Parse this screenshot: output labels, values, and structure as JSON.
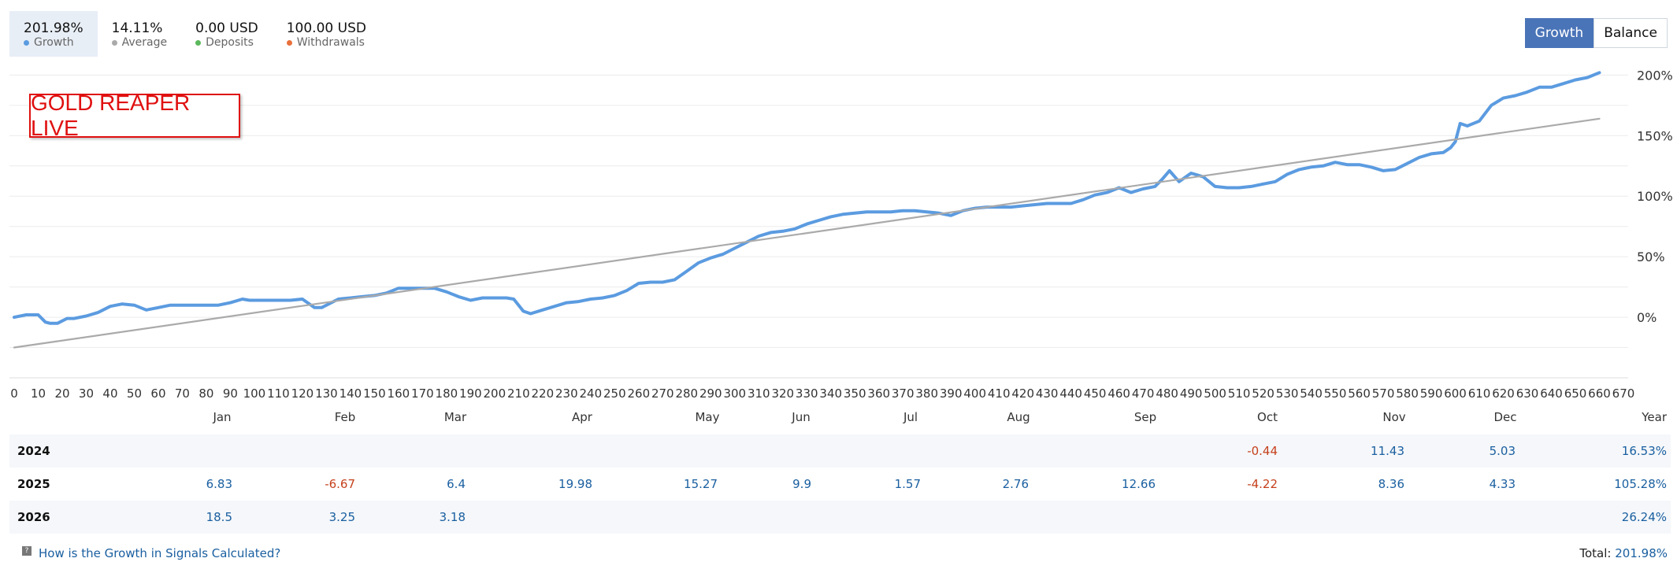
{
  "stats": [
    {
      "value": "201.98%",
      "label": "Growth",
      "dot": "#5b9be0",
      "active": true
    },
    {
      "value": "14.11%",
      "label": "Average",
      "dot": "#aaaaaa",
      "active": false
    },
    {
      "value": "0.00 USD",
      "label": "Deposits",
      "dot": "#5cb85c",
      "active": false
    },
    {
      "value": "100.00 USD",
      "label": "Withdrawals",
      "dot": "#e8703a",
      "active": false
    }
  ],
  "toggle": {
    "growth": "Growth",
    "balance": "Balance"
  },
  "label_box": "GOLD REAPER LIVE",
  "chart_data": {
    "type": "line",
    "xlim": [
      0,
      670
    ],
    "ylim": [
      -50,
      210
    ],
    "x_ticks": [
      0,
      10,
      20,
      30,
      40,
      50,
      60,
      70,
      80,
      90,
      100,
      110,
      120,
      130,
      140,
      150,
      160,
      170,
      180,
      190,
      200,
      210,
      220,
      230,
      240,
      250,
      260,
      270,
      280,
      290,
      300,
      310,
      320,
      330,
      340,
      350,
      360,
      370,
      380,
      390,
      400,
      410,
      420,
      430,
      440,
      450,
      460,
      470,
      480,
      490,
      500,
      510,
      520,
      530,
      540,
      550,
      560,
      570,
      580,
      590,
      600,
      610,
      620,
      630,
      640,
      650,
      660,
      670
    ],
    "y_ticks": [
      0,
      50,
      100,
      150,
      200
    ],
    "y_tick_labels": [
      "0%",
      "50%",
      "100%",
      "150%",
      "200%"
    ],
    "grid": true,
    "series": [
      {
        "color": "#5b9be0",
        "x": [
          0,
          5,
          10,
          13,
          15,
          18,
          22,
          25,
          30,
          35,
          40,
          45,
          50,
          55,
          60,
          65,
          70,
          75,
          80,
          85,
          90,
          95,
          98,
          100,
          105,
          110,
          115,
          120,
          125,
          128,
          132,
          135,
          140,
          145,
          150,
          155,
          160,
          163,
          170,
          175,
          180,
          185,
          190,
          195,
          200,
          205,
          208,
          212,
          215,
          220,
          225,
          230,
          235,
          240,
          245,
          250,
          255,
          260,
          265,
          270,
          275,
          280,
          285,
          290,
          295,
          300,
          305,
          310,
          315,
          320,
          325,
          330,
          335,
          340,
          345,
          350,
          355,
          360,
          365,
          370,
          375,
          380,
          385,
          390,
          395,
          400,
          405,
          410,
          415,
          420,
          425,
          430,
          435,
          440,
          445,
          450,
          455,
          460,
          465,
          470,
          475,
          478,
          481,
          485,
          490,
          495,
          500,
          505,
          510,
          515,
          520,
          525,
          530,
          535,
          540,
          545,
          550,
          555,
          560,
          565,
          570,
          575,
          580,
          585,
          590,
          595,
          598,
          600,
          602,
          605,
          610,
          615,
          620,
          625,
          630,
          635,
          640,
          645,
          650,
          655,
          660
        ],
        "y": [
          0,
          2,
          2,
          -4,
          -5,
          -5,
          -1,
          -1,
          1,
          4,
          9,
          11,
          10,
          6,
          8,
          10,
          10,
          10,
          10,
          10,
          12,
          15,
          14,
          14,
          14,
          14,
          14,
          15,
          8,
          8,
          12,
          15,
          16,
          17,
          18,
          20,
          24,
          24,
          24,
          24,
          21,
          17,
          14,
          16,
          16,
          16,
          15,
          5,
          3,
          6,
          9,
          12,
          13,
          15,
          16,
          18,
          22,
          28,
          29,
          29,
          31,
          38,
          45,
          49,
          52,
          57,
          62,
          67,
          70,
          71,
          73,
          77,
          80,
          83,
          85,
          86,
          87,
          87,
          87,
          88,
          88,
          87,
          86,
          84,
          88,
          90,
          91,
          91,
          91,
          92,
          93,
          94,
          94,
          94,
          97,
          101,
          103,
          107,
          103,
          106,
          108,
          114,
          121,
          112,
          119,
          116,
          108,
          107,
          107,
          108,
          110,
          112,
          118,
          122,
          124,
          125,
          128,
          126,
          126,
          124,
          121,
          122,
          127,
          132,
          135,
          136,
          140,
          145,
          160,
          158,
          162,
          175,
          181,
          183,
          186,
          190,
          190,
          193,
          196,
          198,
          202
        ]
      },
      {
        "color": "#aaaaaa",
        "x": [
          0,
          660
        ],
        "y": [
          -25,
          164
        ]
      }
    ]
  },
  "table": {
    "headers": [
      "Jan",
      "Feb",
      "Mar",
      "Apr",
      "May",
      "Jun",
      "Jul",
      "Aug",
      "Sep",
      "Oct",
      "Nov",
      "Dec",
      "Year"
    ],
    "rows": [
      {
        "year": "2024",
        "cells": [
          "",
          "",
          "",
          "",
          "",
          "",
          "",
          "",
          "",
          "-0.44",
          "11.43",
          "5.03",
          "16.53%"
        ]
      },
      {
        "year": "2025",
        "cells": [
          "6.83",
          "-6.67",
          "6.4",
          "19.98",
          "15.27",
          "9.9",
          "1.57",
          "2.76",
          "12.66",
          "-4.22",
          "8.36",
          "4.33",
          "105.28%"
        ]
      },
      {
        "year": "2026",
        "cells": [
          "18.5",
          "3.25",
          "3.18",
          "",
          "",
          "",
          "",
          "",
          "",
          "",
          "",
          "",
          "26.24%"
        ]
      }
    ]
  },
  "footer": {
    "link": "How is the Growth in Signals Calculated?",
    "total_label": "Total:",
    "total_value": "201.98%"
  }
}
